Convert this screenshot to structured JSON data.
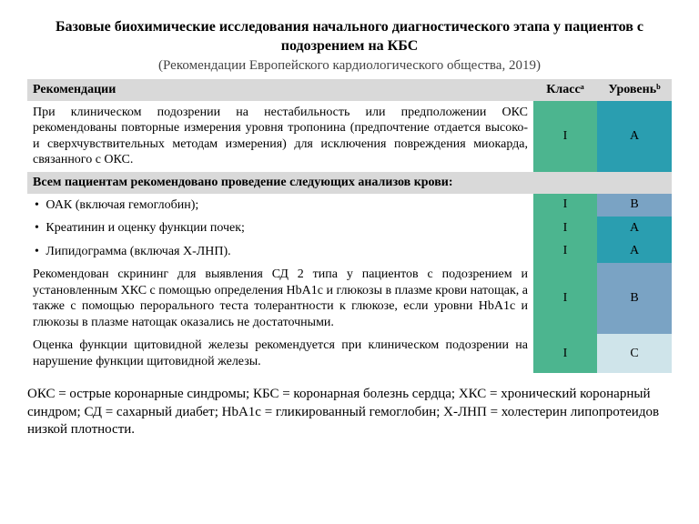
{
  "title": "Базовые биохимические исследования начального диагностического этапа у пациентов с подозрением на КБС",
  "subtitle": "(Рекомендации Европейского кардиологического общества, 2019)",
  "columns": {
    "rec": "Рекомендации",
    "cls": "Классᵃ",
    "lvl": "Уровеньᵇ"
  },
  "colors": {
    "class_I": "#4cb58f",
    "level_A": "#2a9eb0",
    "level_B": "#7aa3c4",
    "level_C": "#cfe4ea",
    "header_bg": "#d9d9d9"
  },
  "rows": [
    {
      "text": "При клиническом подозрении на нестабильность или предположении ОКС рекомендованы повторные измерения уровня тропонина (предпочтение отдается высоко- и сверхчувствительных методам измерения) для исключения повреждения миокарда, связанного с ОКС.",
      "cls": "I",
      "lvl": "A",
      "cls_key": "class_I",
      "lvl_key": "level_A"
    },
    {
      "section": true,
      "text": "Всем пациентам рекомендовано проведение следующих анализов крови:"
    },
    {
      "bullet": true,
      "text": "ОАК (включая гемоглобин);",
      "cls": "I",
      "lvl": "B",
      "cls_key": "class_I",
      "lvl_key": "level_B"
    },
    {
      "bullet": true,
      "text": "Креатинин и оценку функции почек;",
      "cls": "I",
      "lvl": "A",
      "cls_key": "class_I",
      "lvl_key": "level_A"
    },
    {
      "bullet": true,
      "text": "Липидограмма (включая Х-ЛНП).",
      "cls": "I",
      "lvl": "A",
      "cls_key": "class_I",
      "lvl_key": "level_A"
    },
    {
      "text": "Рекомендован скрининг для выявления СД 2 типа у пациентов с подозрением и установленным ХКС с помощью определения HbA1c и глюкозы в плазме крови натощак, а также с помощью перорального теста толерантности к глюкозе, если уровни HbA1c и глюкозы в плазме натощак оказались не достаточными.",
      "cls": "I",
      "lvl": "B",
      "cls_key": "class_I",
      "lvl_key": "level_B"
    },
    {
      "text": "Оценка функции щитовидной железы рекомендуется при клиническом подозрении на нарушение функции щитовидной железы.",
      "cls": "I",
      "lvl": "C",
      "cls_key": "class_I",
      "lvl_key": "level_C"
    }
  ],
  "footer": "ОКС = острые коронарные синдромы; КБС = коронарная болезнь сердца; ХКС = хронический коронарный синдром; СД = сахарный диабет; HbA1c = гликированный гемоглобин; Х-ЛНП = холестерин липопротеидов низкой плотности."
}
